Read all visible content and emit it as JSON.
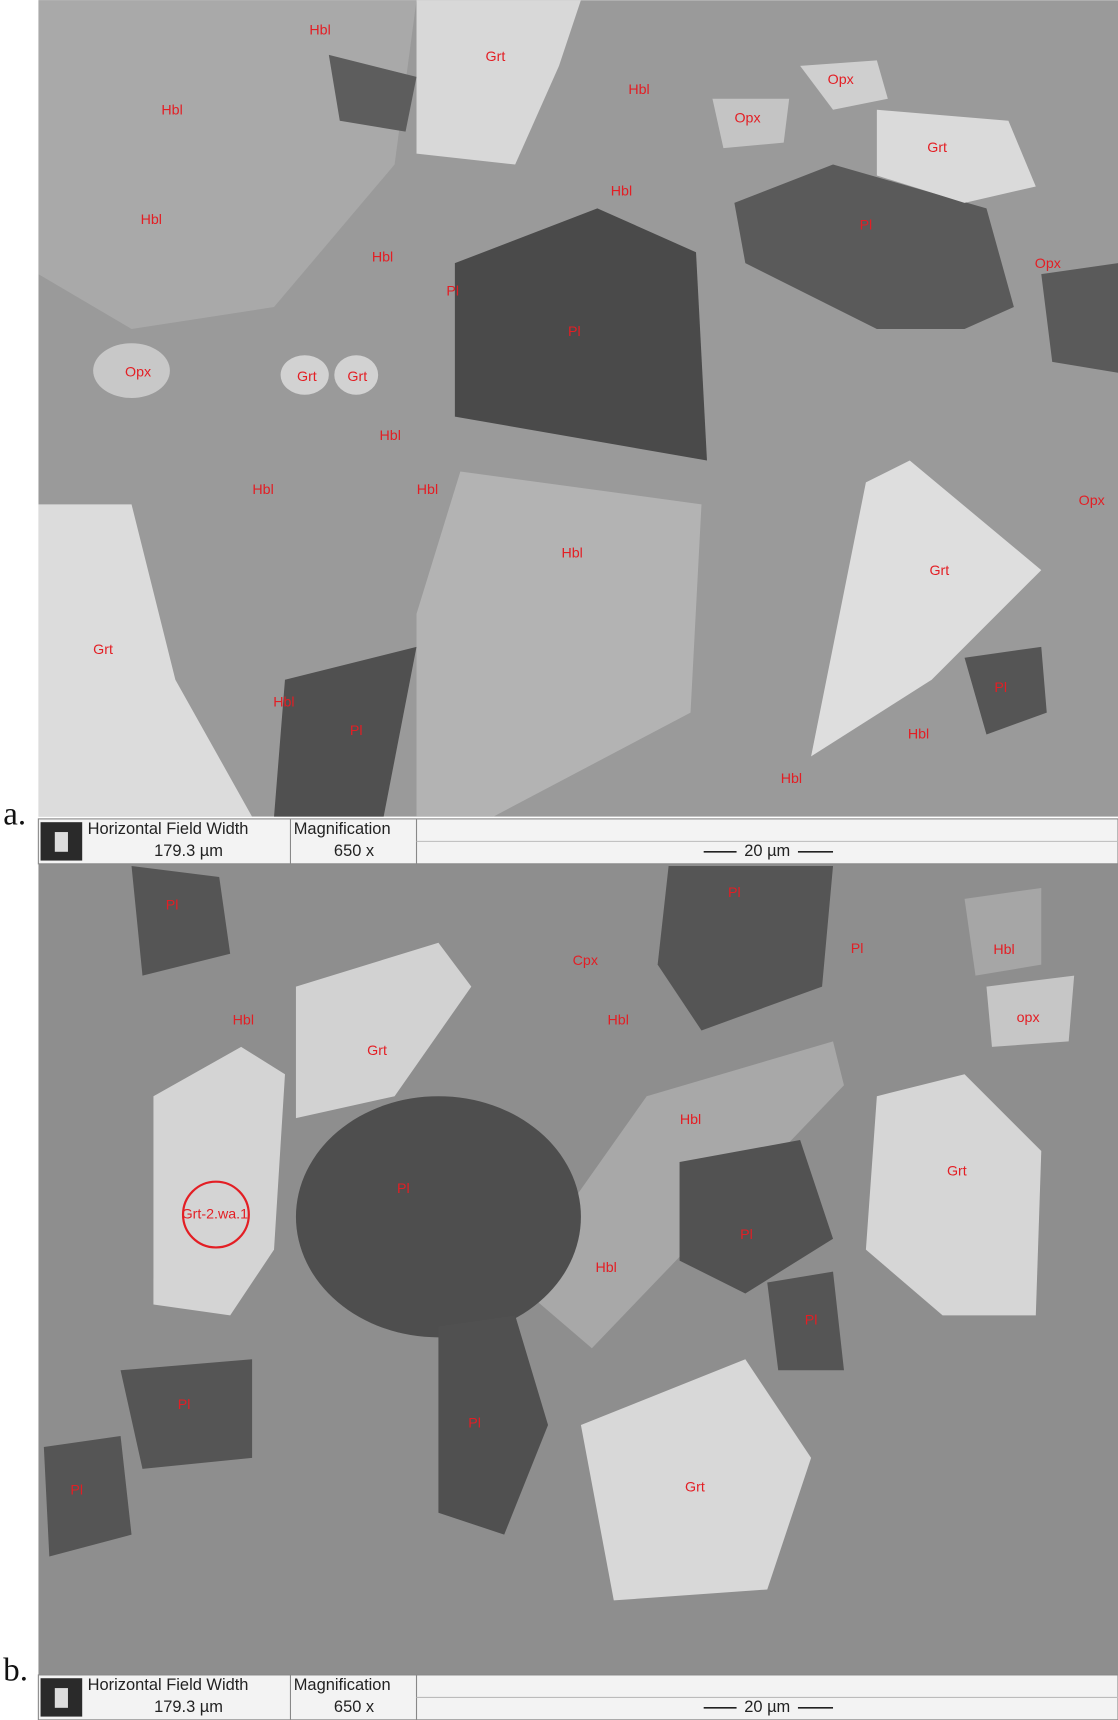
{
  "panels": [
    {
      "label": "a.",
      "annotations": [
        "Hbl",
        "Grt",
        "Hbl",
        "Opx",
        "Opx",
        "Hbl",
        "Grt",
        "Hbl",
        "Hbl",
        "Pl",
        "Opx",
        "Hbl",
        "Pl",
        "Pl",
        "Opx",
        "Grt",
        "Grt",
        "Hbl",
        "Hbl",
        "Hbl",
        "Opx",
        "Hbl",
        "Grt",
        "Grt",
        "Hbl",
        "Pl",
        "Pl",
        "Hbl",
        "Hbl"
      ],
      "info": {
        "hfw_heading": "Horizontal Field Width",
        "hfw": "179.3 µm",
        "mag_heading": "Magnification",
        "mag": "650 x",
        "scale_bar": "20 µm"
      }
    },
    {
      "label": "b.",
      "annotations": [
        "Pl",
        "Pl",
        "Cpx",
        "Pl",
        "Hbl",
        "Hbl",
        "Hbl",
        "opx",
        "Grt",
        "Hbl",
        "Pl",
        "Grt-2.wa.1",
        "Grt",
        "Pl",
        "Hbl",
        "Pl",
        "Pl",
        "Pl",
        "Pl",
        "Grt"
      ],
      "info": {
        "hfw_heading": "Horizontal Field Width",
        "hfw": "179.3 µm",
        "mag_heading": "Magnification",
        "mag": "650 x",
        "scale_bar": "20 µm"
      }
    }
  ]
}
